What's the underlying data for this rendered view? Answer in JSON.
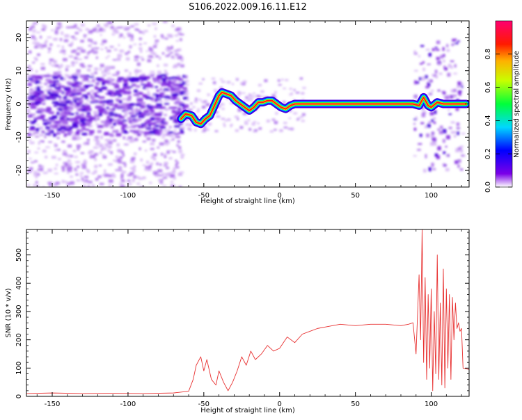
{
  "title": "S106.2022.009.16.11.E12",
  "colorbar": {
    "label": "Normalized spectral amplitude",
    "ticks": [
      "0.0",
      "0.2",
      "0.4",
      "0.6",
      "0.8"
    ]
  },
  "chart_data": [
    {
      "type": "heatmap",
      "xlabel": "Height of straight line (km)",
      "ylabel": "Frequency (Hz)",
      "xlim": [
        -167,
        125
      ],
      "ylim": [
        -25,
        25
      ],
      "xticks": [
        "-150",
        "-100",
        "-50",
        "0",
        "50",
        "100"
      ],
      "yticks": [
        "20",
        "10",
        "0",
        "-10",
        "-20"
      ],
      "ridge": {
        "x": [
          -65,
          -62,
          -58,
          -55,
          -52,
          -49,
          -46,
          -44,
          -42,
          -40,
          -38,
          -35,
          -32,
          -29,
          -26,
          -23,
          -20,
          -17,
          -14,
          -11,
          -8,
          -5,
          -2,
          1,
          4,
          7,
          10,
          15,
          30,
          50,
          70,
          88,
          92,
          95,
          98,
          100,
          104,
          108,
          115,
          123
        ],
        "y": [
          -4.5,
          -3.0,
          -3.5,
          -5.5,
          -6.0,
          -4.5,
          -3.5,
          -1.5,
          0.5,
          2.5,
          3.5,
          3.0,
          2.5,
          1.0,
          0.0,
          -1.0,
          -2.0,
          -1.0,
          0.5,
          0.5,
          1.0,
          1.0,
          0.0,
          -1.0,
          -1.5,
          -0.5,
          0.0,
          0.0,
          0.0,
          0.0,
          0.0,
          0.0,
          -0.5,
          2.0,
          -0.5,
          -1.0,
          0.5,
          0.0,
          0.0,
          0.0
        ]
      }
    },
    {
      "type": "line",
      "xlabel": "Height of straight line (km)",
      "ylabel": "SNR (10 * v/v)",
      "xlim": [
        -167,
        125
      ],
      "ylim": [
        0,
        590
      ],
      "xticks": [
        "-150",
        "-100",
        "-50",
        "0",
        "50",
        "100"
      ],
      "yticks": [
        "0",
        "100",
        "200",
        "300",
        "400",
        "500"
      ],
      "color": "#e83030",
      "series": [
        {
          "x": [
            -167,
            -150,
            -130,
            -110,
            -90,
            -70,
            -60,
            -57,
            -55,
            -52,
            -50,
            -48,
            -45,
            -42,
            -40,
            -37,
            -34,
            -31,
            -28,
            -25,
            -22,
            -19,
            -16,
            -12,
            -8,
            -4,
            0,
            5,
            10,
            15,
            20,
            25,
            30,
            35,
            40,
            50,
            60,
            70,
            80,
            85,
            88,
            90,
            92,
            93,
            94,
            95,
            96,
            97,
            98,
            99,
            100,
            101,
            102,
            103,
            104,
            105,
            106,
            107,
            108,
            109,
            110,
            111,
            112,
            113,
            114,
            115,
            116,
            117,
            118,
            119,
            120,
            121,
            125
          ],
          "y": [
            10,
            12,
            10,
            11,
            10,
            12,
            18,
            60,
            110,
            140,
            90,
            130,
            60,
            40,
            90,
            50,
            20,
            50,
            90,
            140,
            110,
            160,
            130,
            150,
            180,
            160,
            170,
            210,
            190,
            220,
            230,
            240,
            245,
            250,
            255,
            250,
            255,
            255,
            250,
            255,
            260,
            150,
            430,
            200,
            590,
            120,
            420,
            60,
            360,
            100,
            380,
            20,
            300,
            80,
            500,
            60,
            330,
            40,
            450,
            30,
            380,
            100,
            360,
            60,
            350,
            200,
            330,
            240,
            260,
            230,
            240,
            100,
            95
          ]
        }
      ]
    }
  ]
}
